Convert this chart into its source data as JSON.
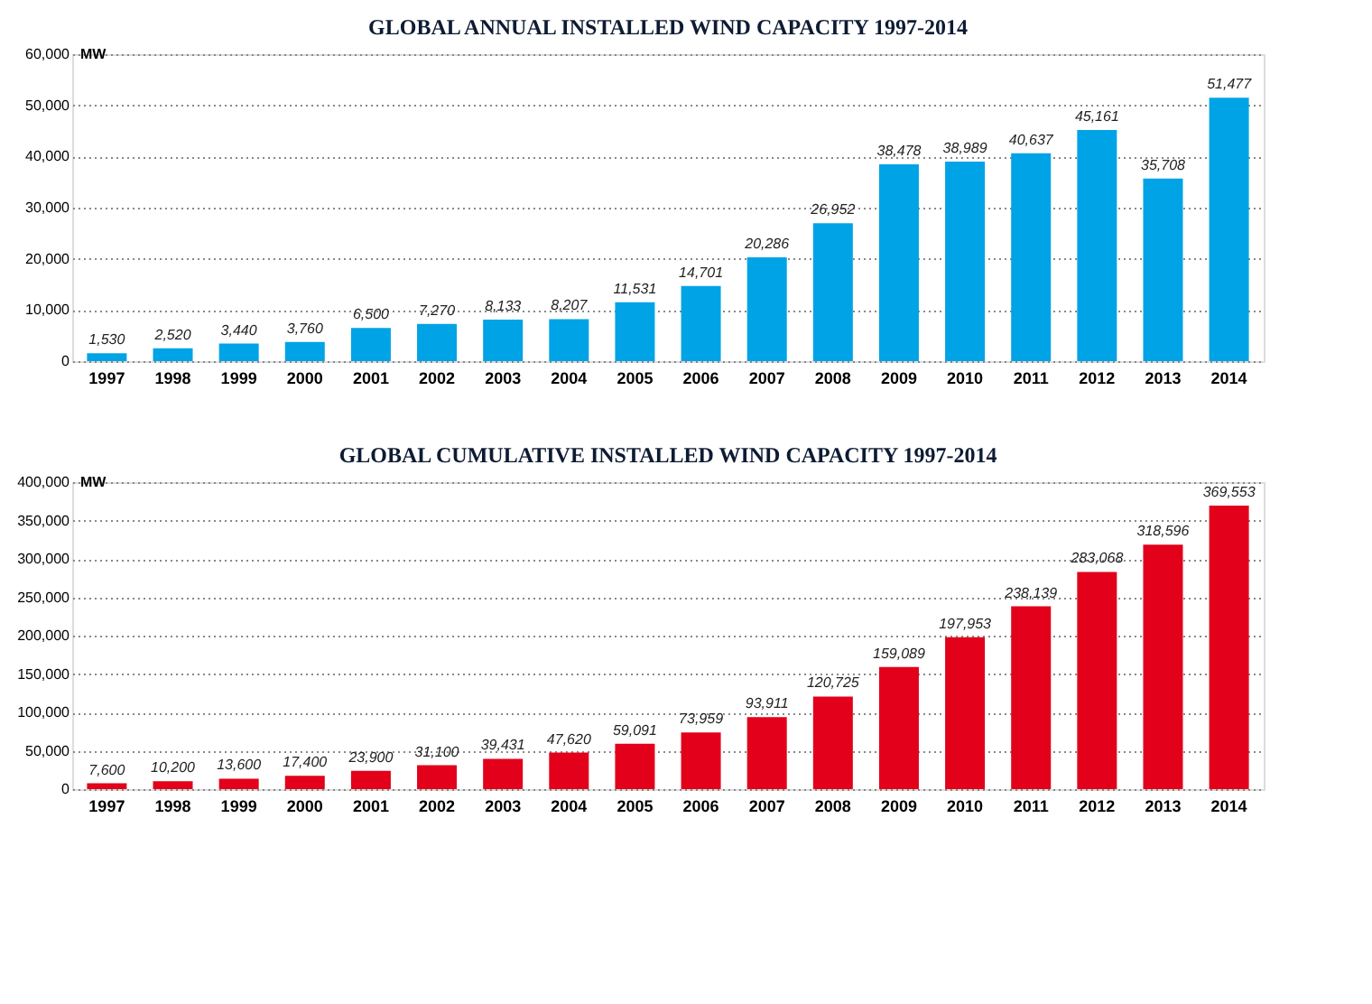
{
  "chart_data": [
    {
      "type": "bar",
      "title": "GLOBAL ANNUAL INSTALLED WIND CAPACITY 1997-2014",
      "ylabel": "MW",
      "categories": [
        "1997",
        "1998",
        "1999",
        "2000",
        "2001",
        "2002",
        "2003",
        "2004",
        "2005",
        "2006",
        "2007",
        "2008",
        "2009",
        "2010",
        "2011",
        "2012",
        "2013",
        "2014"
      ],
      "values": [
        1530,
        2520,
        3440,
        3760,
        6500,
        7270,
        8133,
        8207,
        11531,
        14701,
        20286,
        26952,
        38478,
        38989,
        40637,
        45161,
        35708,
        51477
      ],
      "value_labels": [
        "1,530",
        "2,520",
        "3,440",
        "3,760",
        "6,500",
        "7,270",
        "8,133",
        "8,207",
        "11,531",
        "14,701",
        "20,286",
        "26,952",
        "38,478",
        "38,989",
        "40,637",
        "45,161",
        "35,708",
        "51,477"
      ],
      "color": "#00a3e6",
      "ylim": [
        0,
        60000
      ],
      "yticks": [
        0,
        {
          "value": 10000,
          "label": "10,000"
        },
        {
          "value": 20000,
          "label": "20,000"
        },
        {
          "value": 30000,
          "label": "30,000"
        },
        {
          "value": 40000,
          "label": "40,000"
        },
        {
          "value": 50000,
          "label": "50,000"
        },
        {
          "value": 60000,
          "label": "60,000"
        }
      ],
      "grid": "y"
    },
    {
      "type": "bar",
      "title": "GLOBAL CUMULATIVE INSTALLED WIND CAPACITY 1997-2014",
      "ylabel": "MW",
      "categories": [
        "1997",
        "1998",
        "1999",
        "2000",
        "2001",
        "2002",
        "2003",
        "2004",
        "2005",
        "2006",
        "2007",
        "2008",
        "2009",
        "2010",
        "2011",
        "2012",
        "2013",
        "2014"
      ],
      "values": [
        7600,
        10200,
        13600,
        17400,
        23900,
        31100,
        39431,
        47620,
        59091,
        73959,
        93911,
        120725,
        159089,
        197953,
        238139,
        283068,
        318596,
        369553
      ],
      "value_labels": [
        "7,600",
        "10,200",
        "13,600",
        "17,400",
        "23,900",
        "31,100",
        "39,431",
        "47,620",
        "59,091",
        "73,959",
        "93,911",
        "120,725",
        "159,089",
        "197,953",
        "238,139",
        "283,068",
        "318,596",
        "369,553"
      ],
      "color": "#e2001a",
      "ylim": [
        0,
        400000
      ],
      "yticks": [
        0,
        {
          "value": 50000,
          "label": "50,000"
        },
        {
          "value": 100000,
          "label": "100,000"
        },
        {
          "value": 150000,
          "label": "150,000"
        },
        {
          "value": 200000,
          "label": "200,000"
        },
        {
          "value": 250000,
          "label": "250,000"
        },
        {
          "value": 300000,
          "label": "300,000"
        },
        {
          "value": 350000,
          "label": "350,000"
        },
        {
          "value": 400000,
          "label": "400,000"
        }
      ],
      "grid": "y"
    }
  ]
}
